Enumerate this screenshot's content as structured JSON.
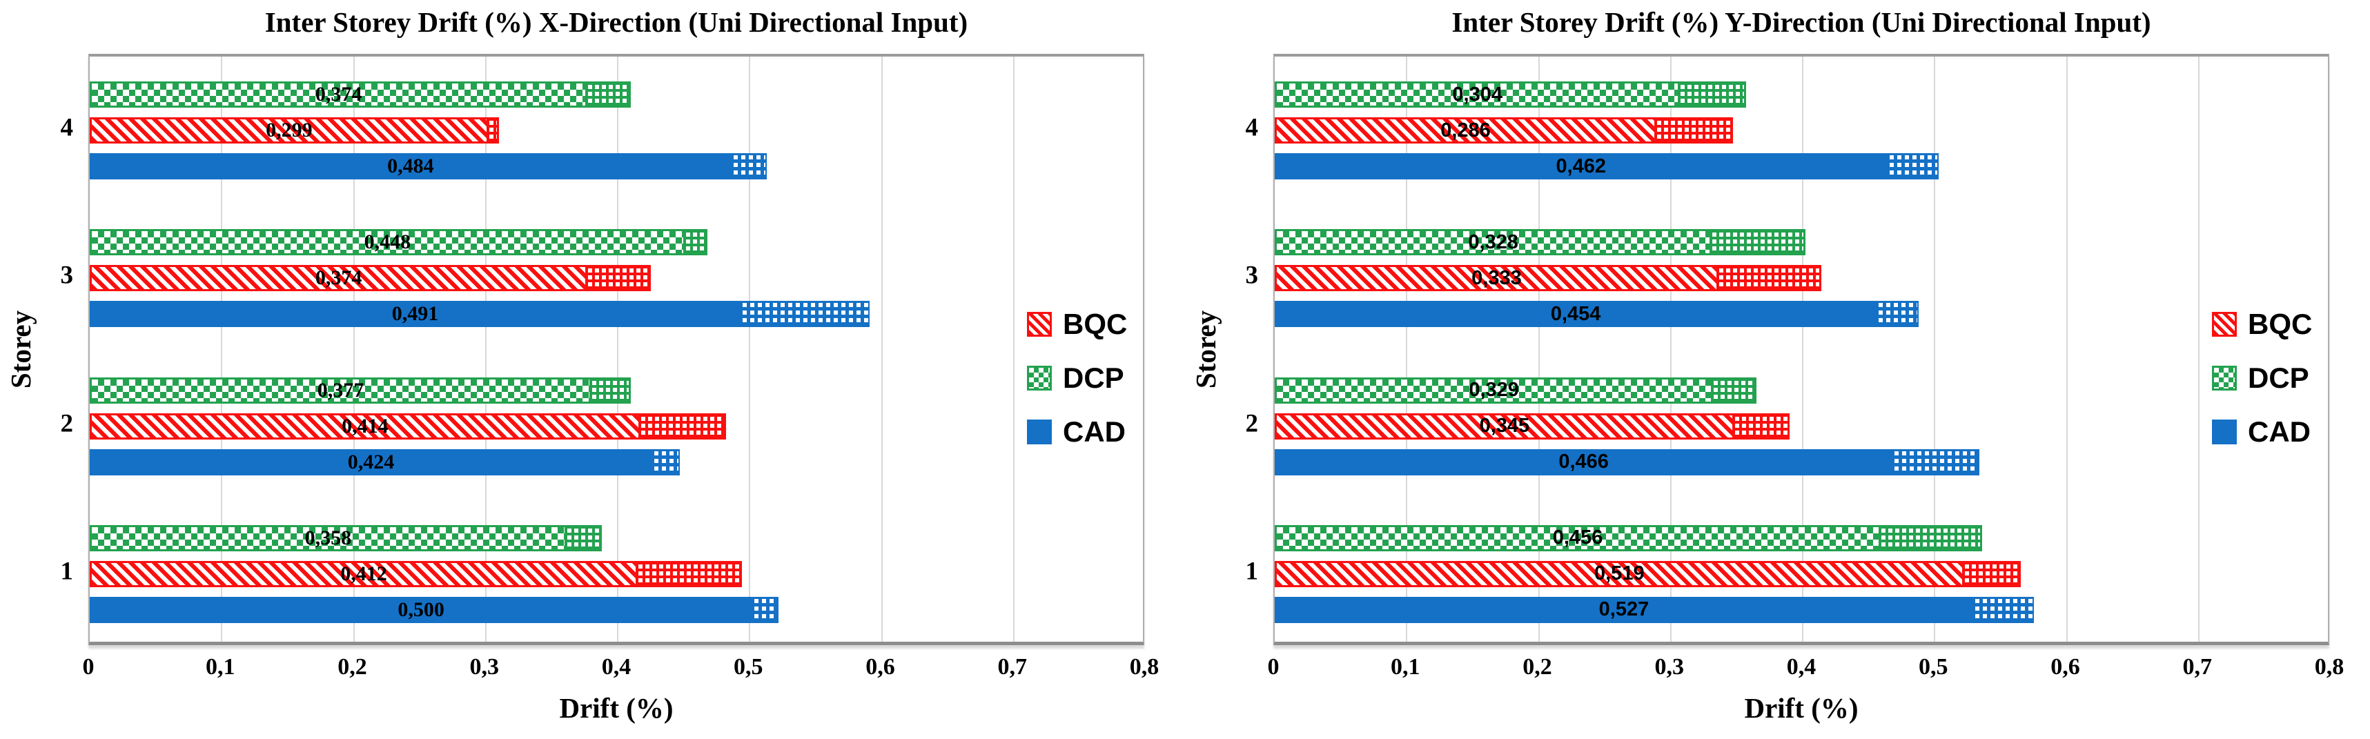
{
  "colors": {
    "bqc_red": "#FA100F",
    "dcp_green": "#23A24F",
    "cad_blue": "#1471C6",
    "gridline_gray": "#D8D8D8",
    "plot_border_gray": "#9C9C9C",
    "text_black": "#000000",
    "background": "#FFFFFF"
  },
  "legend": {
    "position": "middle-right",
    "entries": [
      {
        "label": "BQC",
        "style": "bqc",
        "swatch": "red-diagonal-hatch"
      },
      {
        "label": "DCP",
        "style": "dcp",
        "swatch": "green-checker"
      },
      {
        "label": "CAD",
        "style": "cad",
        "swatch": "blue-solid"
      }
    ]
  },
  "chart_data": [
    {
      "type": "bar",
      "orientation": "horizontal",
      "title": "Inter Storey Drift (%) X-Direction (Uni Directional Input)",
      "xlabel": "Drift (%)",
      "ylabel": "Storey",
      "xlim": [
        0,
        0.8
      ],
      "xtick_labels": [
        "0",
        "0,1",
        "0,2",
        "0,3",
        "0,4",
        "0,5",
        "0,6",
        "0,7",
        "0,8"
      ],
      "grid": "vertical",
      "categories": [
        "4",
        "3",
        "2",
        "1"
      ],
      "bar_order_top_to_bottom": [
        "DCP",
        "BQC",
        "CAD"
      ],
      "series": [
        {
          "name": "DCP",
          "style": "dcp",
          "base_values": [
            0.374,
            0.448,
            0.377,
            0.358
          ],
          "total_values": [
            0.41,
            0.468,
            0.41,
            0.388
          ],
          "base_labels": [
            "0,374",
            "0,448",
            "0,377",
            "0,358"
          ],
          "total_labels": [
            "0,410",
            "0,468",
            "0,410",
            "0,388"
          ]
        },
        {
          "name": "BQC",
          "style": "bqc",
          "base_values": [
            0.299,
            0.374,
            0.414,
            0.412
          ],
          "total_values": [
            0.31,
            0.425,
            0.482,
            0.494
          ],
          "base_labels": [
            "0,299",
            "0,374",
            "0,414",
            "0,412"
          ],
          "total_labels": [
            "0,310",
            "0,425",
            "0,482",
            "0,494"
          ]
        },
        {
          "name": "CAD",
          "style": "cad",
          "base_values": [
            0.484,
            0.491,
            0.424,
            0.5
          ],
          "total_values": [
            0.513,
            0.591,
            0.447,
            0.522
          ],
          "base_labels": [
            "0,484",
            "0,491",
            "0,424",
            "0,500"
          ],
          "total_labels": [
            "0,513",
            "0,591",
            "0,447",
            "0,522"
          ]
        }
      ]
    },
    {
      "type": "bar",
      "orientation": "horizontal",
      "title": "Inter Storey Drift (%) Y-Direction (Uni Directional Input)",
      "xlabel": "Drift (%)",
      "ylabel": "Storey",
      "xlim": [
        0,
        0.8
      ],
      "xtick_labels": [
        "0",
        "0,1",
        "0,2",
        "0,3",
        "0,4",
        "0,5",
        "0,6",
        "0,7",
        "0,8"
      ],
      "grid": "vertical",
      "categories": [
        "4",
        "3",
        "2",
        "1"
      ],
      "bar_order_top_to_bottom": [
        "DCP",
        "BQC",
        "CAD"
      ],
      "series": [
        {
          "name": "DCP",
          "style": "dcp",
          "base_values": [
            0.304,
            0.328,
            0.329,
            0.456
          ],
          "total_values": [
            0.357,
            0.402,
            0.365,
            0.536
          ],
          "base_labels": [
            "0,304",
            "0,328",
            "0,329",
            "0,456"
          ],
          "total_labels": [
            "0,357",
            "0,402",
            "0,365",
            "0,536"
          ]
        },
        {
          "name": "BQC",
          "style": "bqc",
          "base_values": [
            0.286,
            0.333,
            0.345,
            0.519
          ],
          "total_values": [
            0.347,
            0.414,
            0.39,
            0.565
          ],
          "base_labels": [
            "0,286",
            "0,333",
            "0,345",
            "0,519"
          ],
          "total_labels": [
            "0,347",
            "0,414",
            "0,390",
            "0,565"
          ]
        },
        {
          "name": "CAD",
          "style": "cad",
          "base_values": [
            0.462,
            0.454,
            0.466,
            0.527
          ],
          "total_values": [
            0.503,
            0.488,
            0.534,
            0.575
          ],
          "base_labels": [
            "0,462",
            "0,454",
            "0,466",
            "0,527"
          ],
          "total_labels": [
            "0,503",
            "0,488",
            "0,534",
            "0,575"
          ]
        }
      ]
    }
  ]
}
